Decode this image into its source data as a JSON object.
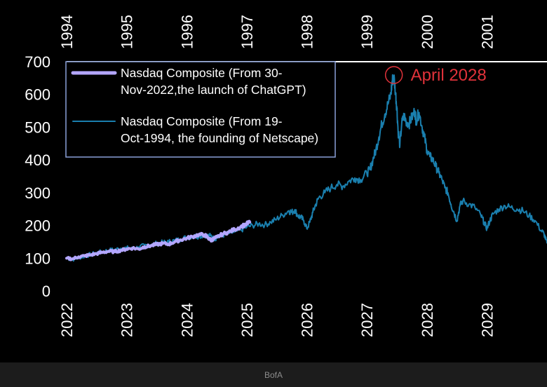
{
  "chart_data": {
    "type": "line",
    "title": "",
    "xlabel": "",
    "ylabel": "",
    "ylim": [
      0,
      700
    ],
    "yticks": [
      0,
      100,
      200,
      300,
      400,
      500,
      600,
      700
    ],
    "x_bottom": {
      "range": [
        2022,
        2030
      ],
      "ticks": [
        "2022",
        "2023",
        "2024",
        "2025",
        "2026",
        "2027",
        "2028",
        "2029"
      ]
    },
    "x_top": {
      "range": [
        1994,
        2002
      ],
      "ticks": [
        "1994",
        "1995",
        "1996",
        "1997",
        "1998",
        "1999",
        "2000",
        "2001"
      ]
    },
    "grid": false,
    "legend_position": "top-left",
    "series": [
      {
        "name": "Nasdaq Composite (From 30-Nov-2022,the launch of ChatGPT)",
        "color": "#b3a6ff",
        "axis": "bottom",
        "points": [
          [
            2022.0,
            100
          ],
          [
            2022.1,
            98
          ],
          [
            2022.2,
            104
          ],
          [
            2022.3,
            107
          ],
          [
            2022.4,
            110
          ],
          [
            2022.5,
            114
          ],
          [
            2022.6,
            118
          ],
          [
            2022.7,
            121
          ],
          [
            2022.8,
            120
          ],
          [
            2022.9,
            124
          ],
          [
            2023.0,
            128
          ],
          [
            2023.1,
            131
          ],
          [
            2023.2,
            128
          ],
          [
            2023.3,
            135
          ],
          [
            2023.4,
            138
          ],
          [
            2023.5,
            142
          ],
          [
            2023.6,
            145
          ],
          [
            2023.7,
            143
          ],
          [
            2023.8,
            150
          ],
          [
            2023.9,
            156
          ],
          [
            2024.0,
            161
          ],
          [
            2024.1,
            166
          ],
          [
            2024.2,
            172
          ],
          [
            2024.3,
            171
          ],
          [
            2024.35,
            163
          ],
          [
            2024.4,
            155
          ],
          [
            2024.45,
            159
          ],
          [
            2024.5,
            164
          ],
          [
            2024.6,
            174
          ],
          [
            2024.7,
            180
          ],
          [
            2024.8,
            188
          ],
          [
            2024.9,
            196
          ],
          [
            2025.0,
            205
          ],
          [
            2025.05,
            210
          ]
        ]
      },
      {
        "name": "Nasdaq Composite (From 19-Oct-1994, the founding of Netscape)",
        "color": "#1a7fae",
        "axis": "top",
        "points": [
          [
            1994.0,
            100
          ],
          [
            1994.1,
            96
          ],
          [
            1994.2,
            102
          ],
          [
            1994.3,
            106
          ],
          [
            1994.4,
            111
          ],
          [
            1994.5,
            116
          ],
          [
            1994.6,
            120
          ],
          [
            1994.7,
            124
          ],
          [
            1994.8,
            126
          ],
          [
            1994.9,
            130
          ],
          [
            1995.0,
            131
          ],
          [
            1995.1,
            128
          ],
          [
            1995.2,
            134
          ],
          [
            1995.3,
            138
          ],
          [
            1995.4,
            141
          ],
          [
            1995.5,
            145
          ],
          [
            1995.6,
            148
          ],
          [
            1995.7,
            150
          ],
          [
            1995.8,
            154
          ],
          [
            1995.9,
            158
          ],
          [
            1996.0,
            164
          ],
          [
            1996.1,
            168
          ],
          [
            1996.2,
            167
          ],
          [
            1996.3,
            170
          ],
          [
            1996.4,
            168
          ],
          [
            1996.45,
            160
          ],
          [
            1996.5,
            162
          ],
          [
            1996.6,
            170
          ],
          [
            1996.7,
            176
          ],
          [
            1996.8,
            180
          ],
          [
            1996.9,
            186
          ],
          [
            1997.0,
            195
          ],
          [
            1997.1,
            200
          ],
          [
            1997.2,
            205
          ],
          [
            1997.3,
            202
          ],
          [
            1997.4,
            210
          ],
          [
            1997.5,
            220
          ],
          [
            1997.6,
            232
          ],
          [
            1997.7,
            245
          ],
          [
            1997.75,
            240
          ],
          [
            1997.8,
            248
          ],
          [
            1997.85,
            230
          ],
          [
            1997.9,
            225
          ],
          [
            1997.95,
            215
          ],
          [
            1998.0,
            190
          ],
          [
            1998.05,
            210
          ],
          [
            1998.1,
            240
          ],
          [
            1998.15,
            265
          ],
          [
            1998.2,
            285
          ],
          [
            1998.3,
            300
          ],
          [
            1998.4,
            315
          ],
          [
            1998.5,
            325
          ],
          [
            1998.6,
            320
          ],
          [
            1998.7,
            335
          ],
          [
            1998.8,
            345
          ],
          [
            1998.9,
            340
          ],
          [
            1999.0,
            360
          ],
          [
            1999.05,
            370
          ],
          [
            1999.1,
            400
          ],
          [
            1999.15,
            430
          ],
          [
            1999.2,
            470
          ],
          [
            1999.25,
            510
          ],
          [
            1999.3,
            540
          ],
          [
            1999.35,
            570
          ],
          [
            1999.4,
            600
          ],
          [
            1999.42,
            640
          ],
          [
            1999.45,
            655
          ],
          [
            1999.48,
            600
          ],
          [
            1999.5,
            560
          ],
          [
            1999.52,
            490
          ],
          [
            1999.55,
            445
          ],
          [
            1999.58,
            510
          ],
          [
            1999.62,
            535
          ],
          [
            1999.65,
            520
          ],
          [
            1999.7,
            510
          ],
          [
            1999.75,
            530
          ],
          [
            1999.8,
            550
          ],
          [
            1999.82,
            520
          ],
          [
            1999.87,
            545
          ],
          [
            1999.92,
            500
          ],
          [
            1999.96,
            470
          ],
          [
            2000.0,
            430
          ],
          [
            2000.05,
            410
          ],
          [
            2000.1,
            400
          ],
          [
            2000.15,
            380
          ],
          [
            2000.2,
            360
          ],
          [
            2000.25,
            340
          ],
          [
            2000.3,
            315
          ],
          [
            2000.35,
            300
          ],
          [
            2000.4,
            265
          ],
          [
            2000.45,
            240
          ],
          [
            2000.5,
            215
          ],
          [
            2000.55,
            260
          ],
          [
            2000.6,
            275
          ],
          [
            2000.7,
            265
          ],
          [
            2000.8,
            255
          ],
          [
            2000.9,
            230
          ],
          [
            2000.95,
            210
          ],
          [
            2001.0,
            190
          ],
          [
            2001.05,
            215
          ],
          [
            2001.1,
            235
          ],
          [
            2001.2,
            250
          ],
          [
            2001.3,
            260
          ],
          [
            2001.4,
            255
          ],
          [
            2001.5,
            250
          ],
          [
            2001.6,
            245
          ],
          [
            2001.7,
            230
          ],
          [
            2001.8,
            215
          ],
          [
            2001.9,
            185
          ],
          [
            2001.95,
            175
          ],
          [
            2002.0,
            145
          ]
        ]
      }
    ],
    "annotations": [
      {
        "text": "April 2028",
        "x": 2027.45,
        "y": 655,
        "axis": "bottom",
        "marker": "circle",
        "color": "#e0323a"
      }
    ]
  },
  "source": "BofA"
}
